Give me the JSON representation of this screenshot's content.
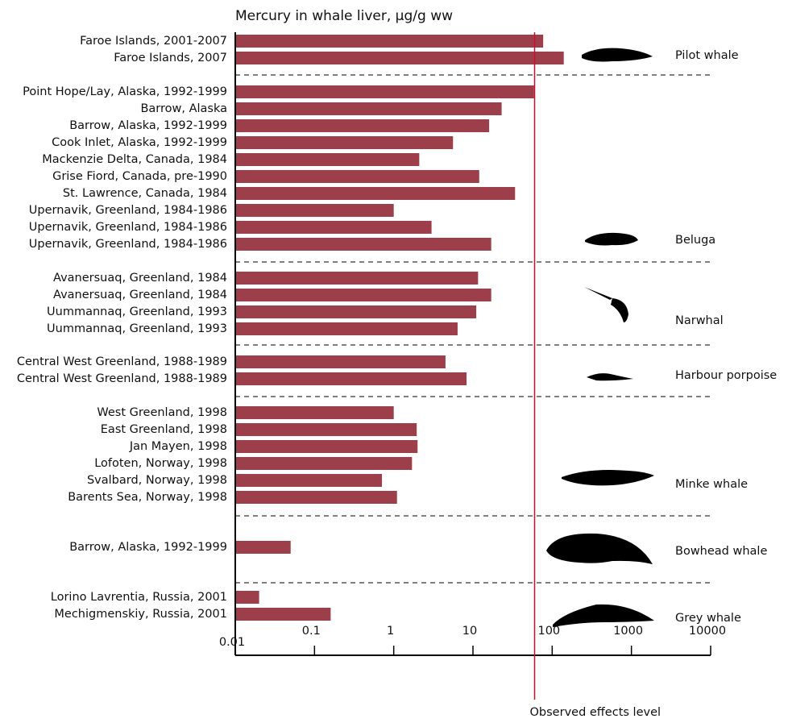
{
  "chart_data": {
    "type": "bar",
    "orientation": "horizontal",
    "title": "Mercury in whale liver, µg/g ww",
    "groups": [
      {
        "name": "Pilot whale",
        "categories": [
          "Faroe Islands, 2001-2007",
          "Faroe Islands, 2007"
        ],
        "values": [
          77,
          140
        ]
      },
      {
        "name": "Beluga",
        "categories": [
          "Point Hope/Lay, Alaska, 1992-1999",
          "Barrow, Alaska",
          "Barrow, Alaska, 1992-1999",
          "Cook Inlet, Alaska, 1992-1999",
          "Mackenzie Delta, Canada, 1984",
          "Grise Fiord, Canada, pre-1990",
          "St. Lawrence, Canada, 1984",
          "Upernavik, Greenland, 1984-1986",
          "Upernavik, Greenland, 1984-1986",
          "Upernavik, Greenland, 1984-1986"
        ],
        "values": [
          59,
          23,
          16,
          5.6,
          2.1,
          12,
          34,
          1.0,
          3.0,
          17
        ]
      },
      {
        "name": "Narwhal",
        "categories": [
          "Avanersuaq, Greenland, 1984",
          "Avanersuaq, Greenland, 1984",
          "Uummannaq, Greenland, 1993",
          "Uummannaq, Greenland, 1993"
        ],
        "values": [
          11.6,
          17,
          11,
          6.4
        ]
      },
      {
        "name": "Harbour porpoise",
        "categories": [
          "Central West Greenland, 1988-1989",
          "Central West Greenland, 1988-1989"
        ],
        "values": [
          4.5,
          8.3
        ]
      },
      {
        "name": "Minke whale",
        "categories": [
          "West Greenland, 1998",
          "East Greenland, 1998",
          "Jan Mayen, 1998",
          "Lofoten, Norway, 1998",
          "Svalbard, Norway, 1998",
          "Barents Sea, Norway, 1998"
        ],
        "values": [
          1.0,
          1.95,
          2.0,
          1.7,
          0.71,
          1.1
        ]
      },
      {
        "name": "Bowhead whale",
        "categories": [
          "Barrow, Alaska, 1992-1999"
        ],
        "values": [
          0.05
        ]
      },
      {
        "name": "Grey whale",
        "categories": [
          "Lorino Lavrentia, Russia, 2001",
          "Mechigmenskiy, Russia, 2001"
        ],
        "values": [
          0.02,
          0.16
        ]
      }
    ],
    "color": "#9c3f4b",
    "xlim": [
      0.01,
      10000
    ],
    "xticks": [
      0.01,
      0.1,
      1,
      10,
      100,
      1000,
      10000
    ],
    "log_scale": true,
    "reference_line": {
      "value": 60,
      "label": "Observed effects level",
      "color": "#c8102e"
    }
  }
}
